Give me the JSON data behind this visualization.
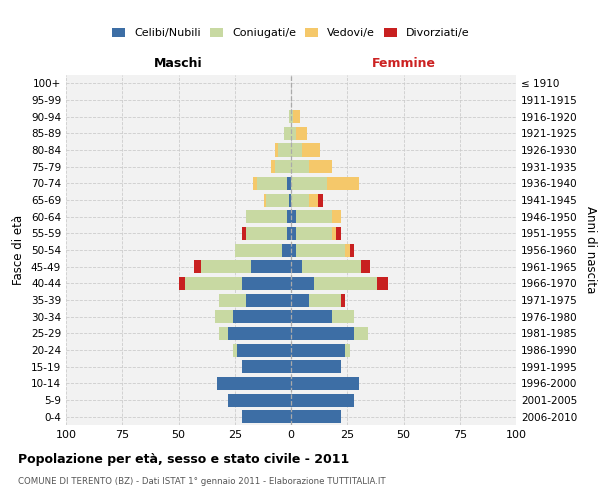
{
  "age_groups": [
    "0-4",
    "5-9",
    "10-14",
    "15-19",
    "20-24",
    "25-29",
    "30-34",
    "35-39",
    "40-44",
    "45-49",
    "50-54",
    "55-59",
    "60-64",
    "65-69",
    "70-74",
    "75-79",
    "80-84",
    "85-89",
    "90-94",
    "95-99",
    "100+"
  ],
  "birth_years": [
    "2006-2010",
    "2001-2005",
    "1996-2000",
    "1991-1995",
    "1986-1990",
    "1981-1985",
    "1976-1980",
    "1971-1975",
    "1966-1970",
    "1961-1965",
    "1956-1960",
    "1951-1955",
    "1946-1950",
    "1941-1945",
    "1936-1940",
    "1931-1935",
    "1926-1930",
    "1921-1925",
    "1916-1920",
    "1911-1915",
    "≤ 1910"
  ],
  "male_celibi": [
    22,
    28,
    33,
    22,
    24,
    28,
    26,
    20,
    22,
    18,
    4,
    2,
    2,
    1,
    2,
    0,
    0,
    0,
    0,
    0,
    0
  ],
  "male_coniugati": [
    0,
    0,
    0,
    0,
    2,
    4,
    8,
    12,
    25,
    22,
    21,
    18,
    18,
    10,
    13,
    7,
    6,
    3,
    1,
    0,
    0
  ],
  "male_vedovi": [
    0,
    0,
    0,
    0,
    0,
    0,
    0,
    0,
    0,
    0,
    0,
    0,
    0,
    1,
    2,
    2,
    1,
    0,
    0,
    0,
    0
  ],
  "male_divorziati": [
    0,
    0,
    0,
    0,
    0,
    0,
    0,
    0,
    3,
    3,
    0,
    2,
    0,
    0,
    0,
    0,
    0,
    0,
    0,
    0,
    0
  ],
  "female_nubili": [
    22,
    28,
    30,
    22,
    24,
    28,
    18,
    8,
    10,
    5,
    2,
    2,
    2,
    0,
    0,
    0,
    0,
    0,
    0,
    0,
    0
  ],
  "female_coniugate": [
    0,
    0,
    0,
    0,
    2,
    6,
    10,
    14,
    28,
    26,
    22,
    16,
    16,
    8,
    16,
    8,
    5,
    2,
    1,
    0,
    0
  ],
  "female_vedove": [
    0,
    0,
    0,
    0,
    0,
    0,
    0,
    0,
    0,
    0,
    2,
    2,
    4,
    4,
    14,
    10,
    8,
    5,
    3,
    0,
    0
  ],
  "female_divorziate": [
    0,
    0,
    0,
    0,
    0,
    0,
    0,
    2,
    5,
    4,
    2,
    2,
    0,
    2,
    0,
    0,
    0,
    0,
    0,
    0,
    0
  ],
  "color_celibi": "#3d6ea5",
  "color_coniugati": "#c8d9a2",
  "color_vedovi": "#f5c86a",
  "color_divorziati": "#c82020",
  "title": "Popolazione per età, sesso e stato civile - 2011",
  "subtitle": "COMUNE DI TERENTO (BZ) - Dati ISTAT 1° gennaio 2011 - Elaborazione TUTTITALIA.IT",
  "label_maschi": "Maschi",
  "label_femmine": "Femmine",
  "label_fasce": "Fasce di età",
  "label_anni": "Anni di nascita",
  "legend_labels": [
    "Celibi/Nubili",
    "Coniugati/e",
    "Vedovi/e",
    "Divorziati/e"
  ],
  "xlim": 100,
  "bg_color": "#ffffff",
  "plot_bg": "#f2f2f2",
  "grid_color": "#cccccc"
}
